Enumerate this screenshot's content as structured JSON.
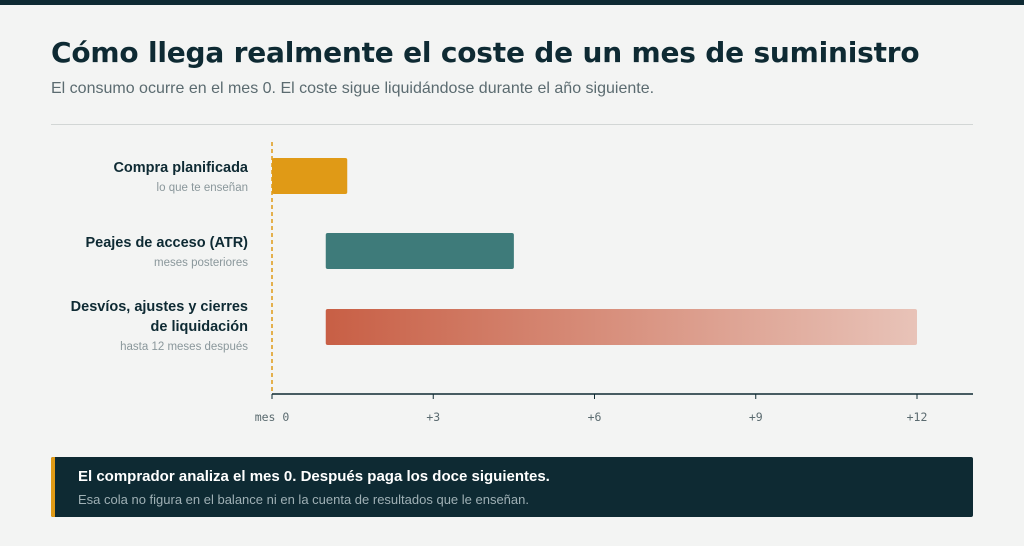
{
  "header": {
    "title": "Cómo llega realmente el coste de un mes de suministro",
    "subtitle": "El consumo ocurre en el mes 0. El coste sigue liquidándose durante el año siguiente."
  },
  "chart_data": {
    "type": "bar",
    "orientation": "horizontal-timeline",
    "xlim": [
      0,
      13
    ],
    "x_ticks": [
      {
        "value": 0,
        "label": "mes 0"
      },
      {
        "value": 3,
        "label": "+3"
      },
      {
        "value": 6,
        "label": "+6"
      },
      {
        "value": 9,
        "label": "+9"
      },
      {
        "value": 12,
        "label": "+12"
      }
    ],
    "reference_line": {
      "value": 0,
      "style": "dashed",
      "color": "#e09a16"
    },
    "series": [
      {
        "name": "Compra planificada",
        "sublabel": "lo que te enseñan",
        "start": 0,
        "end": 1.4,
        "color": "#e09a16",
        "fill": "solid"
      },
      {
        "name": "Peajes de acceso (ATR)",
        "sublabel": "meses posteriores",
        "start": 1,
        "end": 4.5,
        "color": "#3e7b7a",
        "fill": "solid"
      },
      {
        "name": "Desvíos, ajustes y cierres de liquidación",
        "name_lines": [
          "Desvíos, ajustes y cierres",
          "de liquidación"
        ],
        "sublabel": "hasta 12 meses después",
        "start": 1,
        "end": 12,
        "color": "#c85f45",
        "color_end": "#e8c3b8",
        "fill": "gradient"
      }
    ],
    "grid": false
  },
  "callout": {
    "title": "El comprador analiza el mes 0. Después paga los doce siguientes.",
    "text": "Esa cola no figura en el balance ni en la cuenta de resultados que le enseñan.",
    "accent_color": "#e09a16"
  }
}
